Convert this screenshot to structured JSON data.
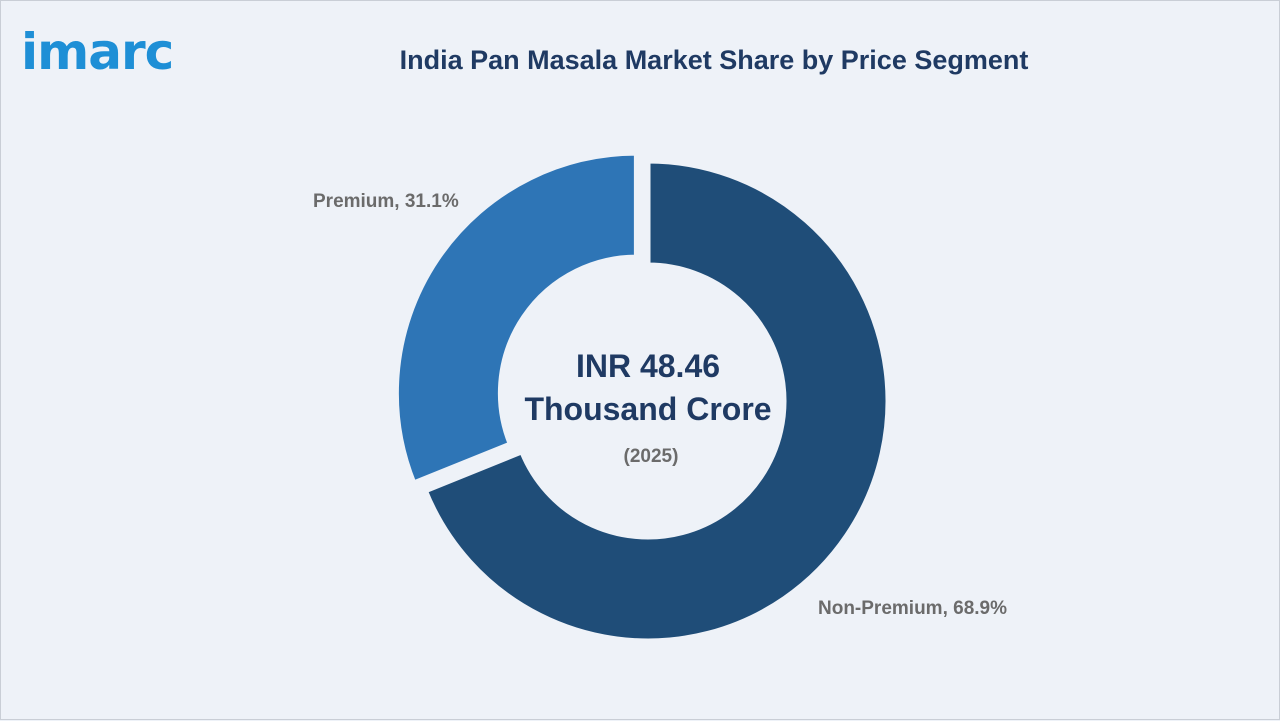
{
  "brand": {
    "name": "imarc",
    "color": "#1e8fd6"
  },
  "chart_data": {
    "type": "pie",
    "title": "India Pan Masala Market Share by Price Segment",
    "categories": [
      "Non-Premium",
      "Premium"
    ],
    "values": [
      68.9,
      31.1
    ],
    "unit": "%",
    "slice_labels": [
      "Non-Premium, 68.9%",
      "Premium, 31.1%"
    ],
    "colors": [
      "#1f4d78",
      "#2e75b6"
    ],
    "center_text": {
      "line1": "INR 48.46",
      "line2": "Thousand Crore",
      "year": "(2025)"
    }
  }
}
